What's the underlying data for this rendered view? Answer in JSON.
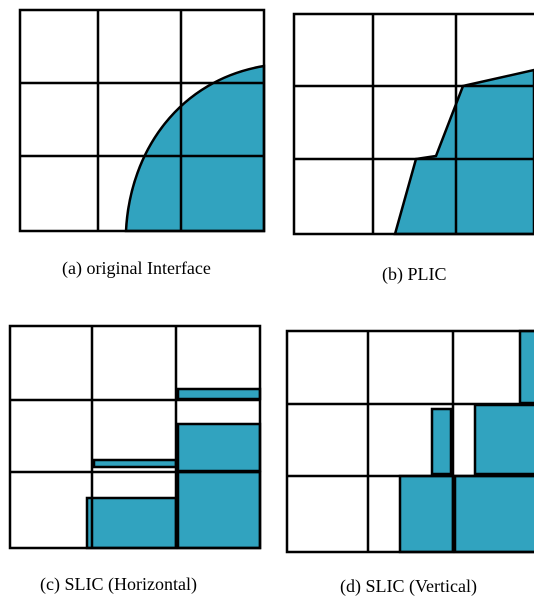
{
  "fill_color": "#31a3bf",
  "line_color": "#000000",
  "panels": [
    {
      "id": "a",
      "caption": "(a) original Interface"
    },
    {
      "id": "b",
      "caption": "(b) PLIC"
    },
    {
      "id": "c",
      "caption": "(c) SLIC (Horizontal)"
    },
    {
      "id": "d",
      "caption": "(d) SLIC (Vertical)"
    }
  ]
}
